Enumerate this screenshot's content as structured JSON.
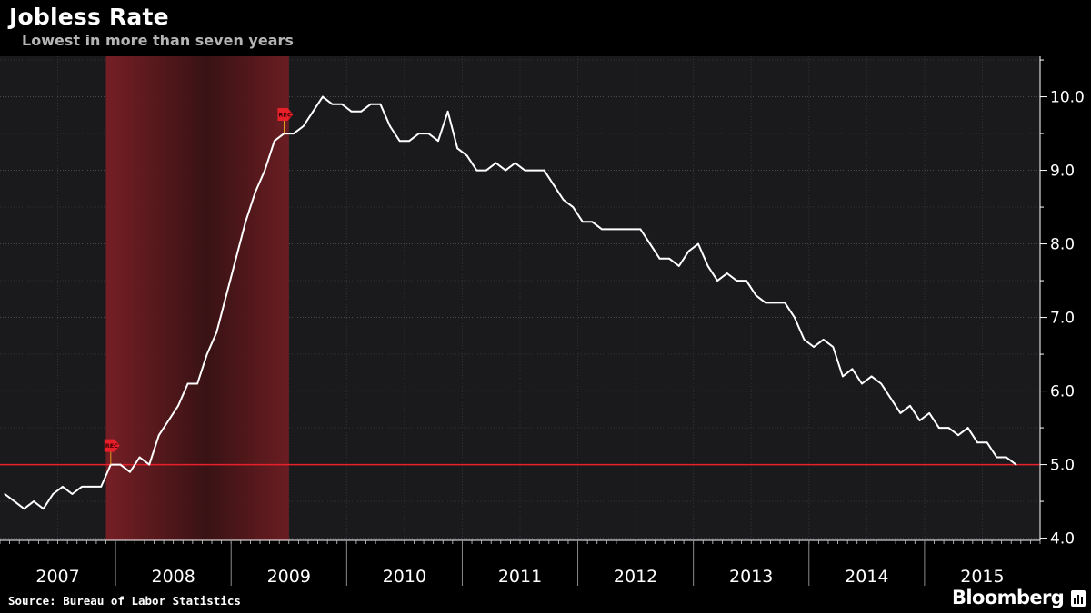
{
  "header": {
    "title": "Jobless Rate",
    "subtitle": "Lowest in more than seven years"
  },
  "footer": {
    "source": "Source: Bureau of Labor Statistics",
    "brand": "Bloomberg"
  },
  "colors": {
    "background": "#000000",
    "plot_background": "#1a1a1d",
    "line": "#ffffff",
    "recession_shade": "#7a1f25",
    "reference_line": "#e8202a",
    "marker": "#e8202a"
  },
  "chart_data": {
    "type": "line",
    "title": "Jobless Rate",
    "subtitle": "Lowest in more than seven years",
    "xlabel": "",
    "ylabel": "",
    "ylim": [
      3.97,
      10.55
    ],
    "xlim": [
      "2007-01",
      "2015-12"
    ],
    "y_ticks": [
      4.0,
      5.0,
      6.0,
      7.0,
      8.0,
      9.0,
      10.0
    ],
    "y_tick_labels": [
      "4.0",
      "5.0",
      "6.0",
      "7.0",
      "8.0",
      "9.0",
      "10.0"
    ],
    "y_axis_side": "right",
    "x_tick_labels": [
      "2007",
      "2008",
      "2009",
      "2010",
      "2011",
      "2012",
      "2013",
      "2014",
      "2015"
    ],
    "grid": true,
    "series": [
      {
        "start": "2007-01",
        "frequency": "monthly",
        "values": [
          4.6,
          4.5,
          4.4,
          4.5,
          4.4,
          4.6,
          4.7,
          4.6,
          4.7,
          4.7,
          4.7,
          5.0,
          5.0,
          4.9,
          5.1,
          5.0,
          5.4,
          5.6,
          5.8,
          6.1,
          6.1,
          6.5,
          6.8,
          7.3,
          7.8,
          8.3,
          8.7,
          9.0,
          9.4,
          9.5,
          9.5,
          9.6,
          9.8,
          10.0,
          9.9,
          9.9,
          9.8,
          9.8,
          9.9,
          9.9,
          9.6,
          9.4,
          9.4,
          9.5,
          9.5,
          9.4,
          9.8,
          9.3,
          9.2,
          9.0,
          9.0,
          9.1,
          9.0,
          9.1,
          9.0,
          9.0,
          9.0,
          8.8,
          8.6,
          8.5,
          8.3,
          8.3,
          8.2,
          8.2,
          8.2,
          8.2,
          8.2,
          8.0,
          7.8,
          7.8,
          7.7,
          7.9,
          8.0,
          7.7,
          7.5,
          7.6,
          7.5,
          7.5,
          7.3,
          7.2,
          7.2,
          7.2,
          7.0,
          6.7,
          6.6,
          6.7,
          6.6,
          6.2,
          6.3,
          6.1,
          6.2,
          6.1,
          5.9,
          5.7,
          5.8,
          5.6,
          5.7,
          5.5,
          5.5,
          5.4,
          5.5,
          5.3,
          5.3,
          5.1,
          5.1,
          5.0
        ]
      }
    ],
    "recession": {
      "start": "2007-12",
      "end": "2009-06",
      "label": "REC"
    },
    "markers": [
      {
        "date": "2007-12",
        "value": 5.0,
        "label": "REC"
      },
      {
        "date": "2009-06",
        "value": 9.5,
        "label": "REC"
      }
    ],
    "reference_line": {
      "value": 5.0
    }
  }
}
